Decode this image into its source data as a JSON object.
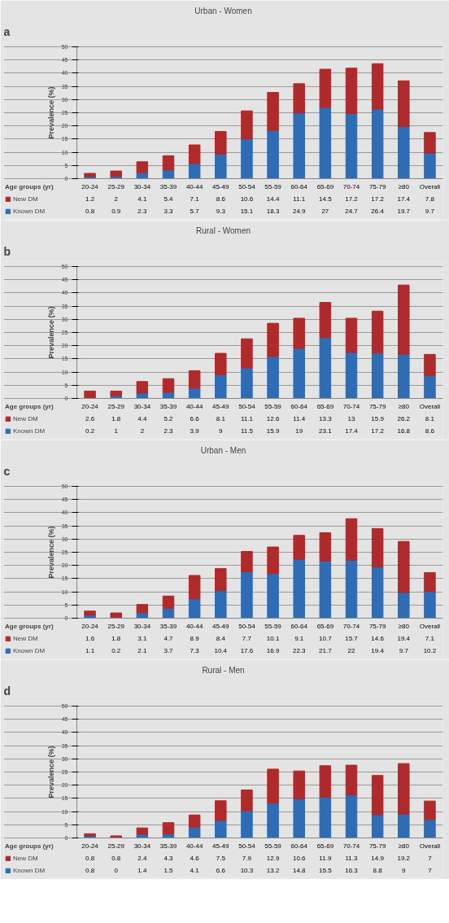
{
  "chart_data": [
    {
      "type": "bar",
      "title": "Urban - Women",
      "annotations": [
        "a"
      ],
      "xlabel": "Age groups (yr)",
      "ylabel": "Prevalence (%)",
      "stacked": true,
      "data_labels": true,
      "legend": "bottom",
      "grid": "y",
      "ylim": [
        0,
        50
      ],
      "yticks": [
        0,
        5,
        10,
        15,
        20,
        25,
        30,
        35,
        40,
        45,
        50
      ],
      "categories": [
        "20-24",
        "25-29",
        "30-34",
        "35-39",
        "40-44",
        "45-49",
        "50-54",
        "55-59",
        "60-64",
        "65-69",
        "70-74",
        "75-79",
        "≥80",
        "Overall"
      ],
      "series": [
        {
          "name": "Known DM",
          "color": "#2e6cb5",
          "values": [
            0.8,
            0.9,
            2.3,
            3.3,
            5.7,
            9.3,
            15.1,
            18.3,
            24.9,
            27,
            24.7,
            26.4,
            19.7,
            9.7
          ]
        },
        {
          "name": "New DM",
          "color": "#b0292b",
          "values": [
            1.2,
            2,
            4.1,
            5.4,
            7.1,
            8.6,
            10.6,
            14.4,
            11.1,
            14.5,
            17.2,
            17.2,
            17.4,
            7.8
          ]
        }
      ]
    },
    {
      "type": "bar",
      "title": "Rural - Women",
      "annotations": [
        "b"
      ],
      "xlabel": "Age groups (yr)",
      "ylabel": "Prevalence (%)",
      "stacked": true,
      "data_labels": true,
      "legend": "bottom",
      "grid": "y",
      "ylim": [
        0,
        50
      ],
      "yticks": [
        0,
        5,
        10,
        15,
        20,
        25,
        30,
        35,
        40,
        45,
        50
      ],
      "categories": [
        "20-24",
        "25-29",
        "30-34",
        "35-39",
        "40-44",
        "45-49",
        "50-54",
        "55-59",
        "60-64",
        "65-69",
        "70-74",
        "75-79",
        "≥80",
        "Overall"
      ],
      "series": [
        {
          "name": "Known DM",
          "color": "#2e6cb5",
          "values": [
            0.2,
            1,
            2,
            2.3,
            3.9,
            9,
            11.5,
            15.9,
            19,
            23.1,
            17.4,
            17.2,
            16.8,
            8.6
          ]
        },
        {
          "name": "New DM",
          "color": "#b0292b",
          "values": [
            2.6,
            1.8,
            4.4,
            5.2,
            6.6,
            8.1,
            11.1,
            12.6,
            11.4,
            13.3,
            13,
            15.9,
            26.2,
            8.1
          ]
        }
      ]
    },
    {
      "type": "bar",
      "title": "Urban - Men",
      "annotations": [
        "c"
      ],
      "xlabel": "Age groups (yr)",
      "ylabel": "Prevalence (%)",
      "stacked": true,
      "data_labels": true,
      "legend": "bottom",
      "grid": "y",
      "ylim": [
        0,
        50
      ],
      "yticks": [
        0,
        5,
        10,
        15,
        20,
        25,
        30,
        35,
        40,
        45,
        50
      ],
      "categories": [
        "20-24",
        "25-29",
        "30-34",
        "35-39",
        "40-44",
        "45-49",
        "50-54",
        "55-59",
        "60-64",
        "65-69",
        "70-74",
        "75-79",
        "≥80",
        "Overall"
      ],
      "series": [
        {
          "name": "Known DM",
          "color": "#2e6cb5",
          "values": [
            1.1,
            0.2,
            2.1,
            3.7,
            7.3,
            10.4,
            17.6,
            16.9,
            22.3,
            21.7,
            22,
            19.4,
            9.7,
            10.2
          ]
        },
        {
          "name": "New DM",
          "color": "#b0292b",
          "values": [
            1.6,
            1.8,
            3.1,
            4.7,
            8.9,
            8.4,
            7.7,
            10.1,
            9.1,
            10.7,
            15.7,
            14.6,
            19.4,
            7.1
          ]
        }
      ]
    },
    {
      "type": "bar",
      "title": "Rural - Men",
      "annotations": [
        "d"
      ],
      "xlabel": "Age groups (yr)",
      "ylabel": "Prevalence (%)",
      "stacked": true,
      "data_labels": true,
      "legend": "bottom",
      "grid": "y",
      "ylim": [
        0,
        50
      ],
      "yticks": [
        0,
        5,
        10,
        15,
        20,
        25,
        30,
        35,
        40,
        45,
        50
      ],
      "categories": [
        "20-24",
        "25-29",
        "30-34",
        "35-39",
        "40-44",
        "45-49",
        "50-54",
        "55-59",
        "60-64",
        "65-69",
        "70-74",
        "75-79",
        "≥80",
        "Overall"
      ],
      "series": [
        {
          "name": "Known DM",
          "color": "#2e6cb5",
          "values": [
            0.8,
            0,
            1.4,
            1.5,
            4.1,
            6.6,
            10.3,
            13.2,
            14.8,
            15.5,
            16.3,
            8.8,
            9,
            7
          ]
        },
        {
          "name": "New DM",
          "color": "#b0292b",
          "values": [
            0.8,
            0.8,
            2.4,
            4.3,
            4.6,
            7.5,
            7.9,
            12.9,
            10.6,
            11.9,
            11.3,
            14.9,
            19.2,
            7
          ]
        }
      ]
    }
  ]
}
